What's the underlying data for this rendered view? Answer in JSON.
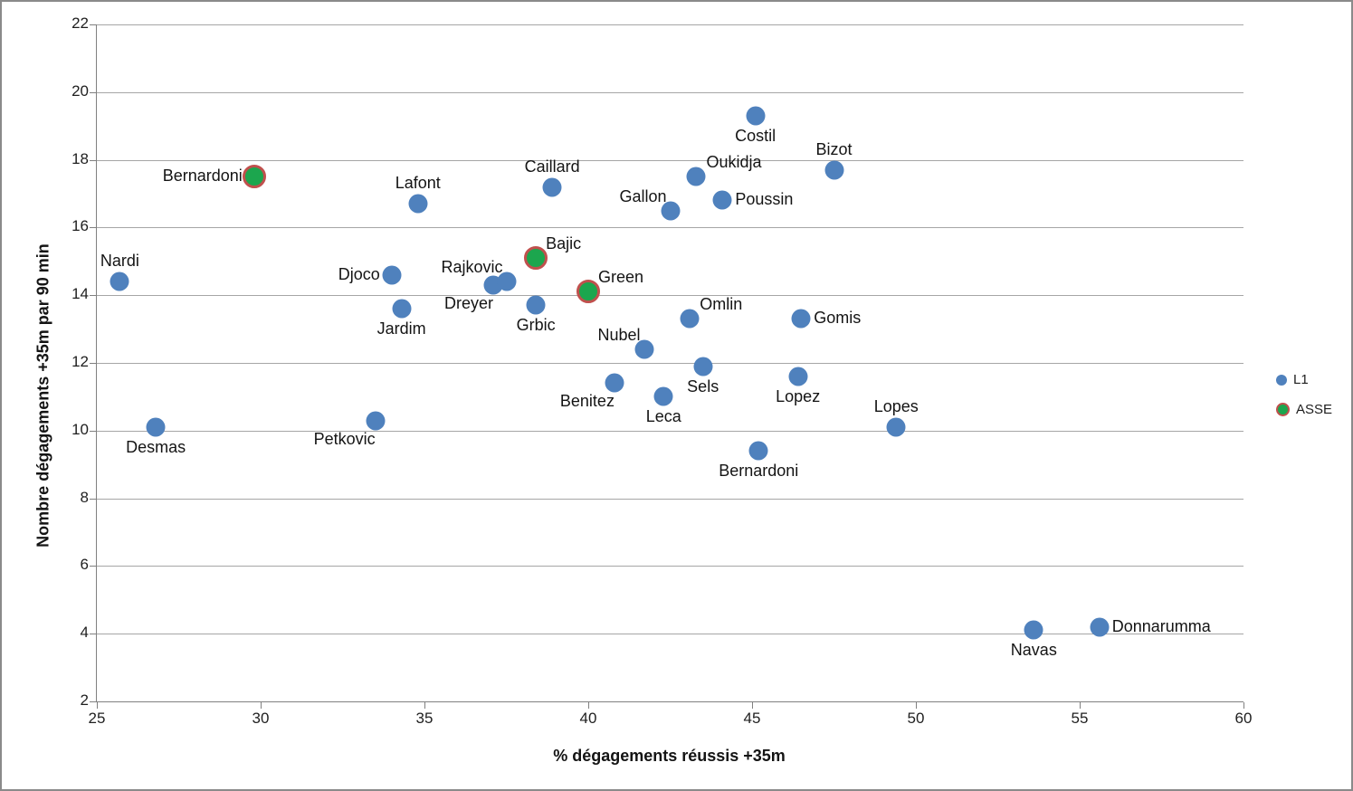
{
  "chart_data": {
    "type": "scatter",
    "title": "",
    "xlabel": "% dégagements réussis +35m",
    "ylabel": "Nombre dégagements +35m par 90 min",
    "xlim": [
      25,
      60
    ],
    "ylim": [
      2,
      22
    ],
    "xticks": [
      25,
      30,
      35,
      40,
      45,
      50,
      55,
      60
    ],
    "yticks": [
      2,
      4,
      6,
      8,
      10,
      12,
      14,
      16,
      18,
      20,
      22
    ],
    "grid": "horizontal",
    "legend_position": "right",
    "colors": {
      "l1_fill": "#4f81bd",
      "asse_fill": "#1ca64e",
      "asse_border": "#c0504d",
      "gridline": "#a6a6a6",
      "axis_line": "#808080",
      "text": "#1f1f1f"
    },
    "series": [
      {
        "name": "L1",
        "points": [
          {
            "label": "Nardi",
            "x": 25.7,
            "y": 14.4,
            "label_pos": "above"
          },
          {
            "label": "Desmas",
            "x": 26.8,
            "y": 10.1,
            "label_pos": "below"
          },
          {
            "label": "Petkovic",
            "x": 33.5,
            "y": 10.3,
            "label_pos": "below-left"
          },
          {
            "label": "Djoco",
            "x": 34.0,
            "y": 14.6,
            "label_pos": "left"
          },
          {
            "label": "Jardim",
            "x": 34.3,
            "y": 13.6,
            "label_pos": "below"
          },
          {
            "label": "Lafont",
            "x": 34.8,
            "y": 16.7,
            "label_pos": "above"
          },
          {
            "label": "Dreyer",
            "x": 37.1,
            "y": 14.3,
            "label_pos": "below-left"
          },
          {
            "label": "Rajkovic",
            "x": 37.5,
            "y": 14.4,
            "label_pos": "above-left"
          },
          {
            "label": "Grbic",
            "x": 38.4,
            "y": 13.7,
            "label_pos": "below"
          },
          {
            "label": "Caillard",
            "x": 38.9,
            "y": 17.2,
            "label_pos": "above"
          },
          {
            "label": "Benitez",
            "x": 40.8,
            "y": 11.4,
            "label_pos": "below-left"
          },
          {
            "label": "Nubel",
            "x": 41.7,
            "y": 12.4,
            "label_pos": "above-left"
          },
          {
            "label": "Leca",
            "x": 42.3,
            "y": 11.0,
            "label_pos": "below"
          },
          {
            "label": "Gallon",
            "x": 42.5,
            "y": 16.5,
            "label_pos": "above-left"
          },
          {
            "label": "Omlin",
            "x": 43.1,
            "y": 13.3,
            "label_pos": "above-right"
          },
          {
            "label": "Oukidja",
            "x": 43.3,
            "y": 17.5,
            "label_pos": "above-right"
          },
          {
            "label": "Sels",
            "x": 43.5,
            "y": 11.9,
            "label_pos": "below"
          },
          {
            "label": "Poussin",
            "x": 44.1,
            "y": 16.8,
            "label_pos": "right"
          },
          {
            "label": "Costil",
            "x": 45.1,
            "y": 19.3,
            "label_pos": "below"
          },
          {
            "label": "Bernardoni",
            "x": 45.2,
            "y": 9.4,
            "label_pos": "below"
          },
          {
            "label": "Lopez",
            "x": 46.4,
            "y": 11.6,
            "label_pos": "below"
          },
          {
            "label": "Gomis",
            "x": 46.5,
            "y": 13.3,
            "label_pos": "right"
          },
          {
            "label": "Bizot",
            "x": 47.5,
            "y": 17.7,
            "label_pos": "above"
          },
          {
            "label": "Lopes",
            "x": 49.4,
            "y": 10.1,
            "label_pos": "above"
          },
          {
            "label": "Navas",
            "x": 53.6,
            "y": 4.1,
            "label_pos": "below"
          },
          {
            "label": "Donnarumma",
            "x": 55.6,
            "y": 4.2,
            "label_pos": "right"
          }
        ]
      },
      {
        "name": "ASSE",
        "points": [
          {
            "label": "Bernardoni",
            "x": 29.8,
            "y": 17.5,
            "label_pos": "left"
          },
          {
            "label": "Bajic",
            "x": 38.4,
            "y": 15.1,
            "label_pos": "above-right"
          },
          {
            "label": "Green",
            "x": 40.0,
            "y": 14.1,
            "label_pos": "above-right"
          }
        ]
      }
    ]
  }
}
